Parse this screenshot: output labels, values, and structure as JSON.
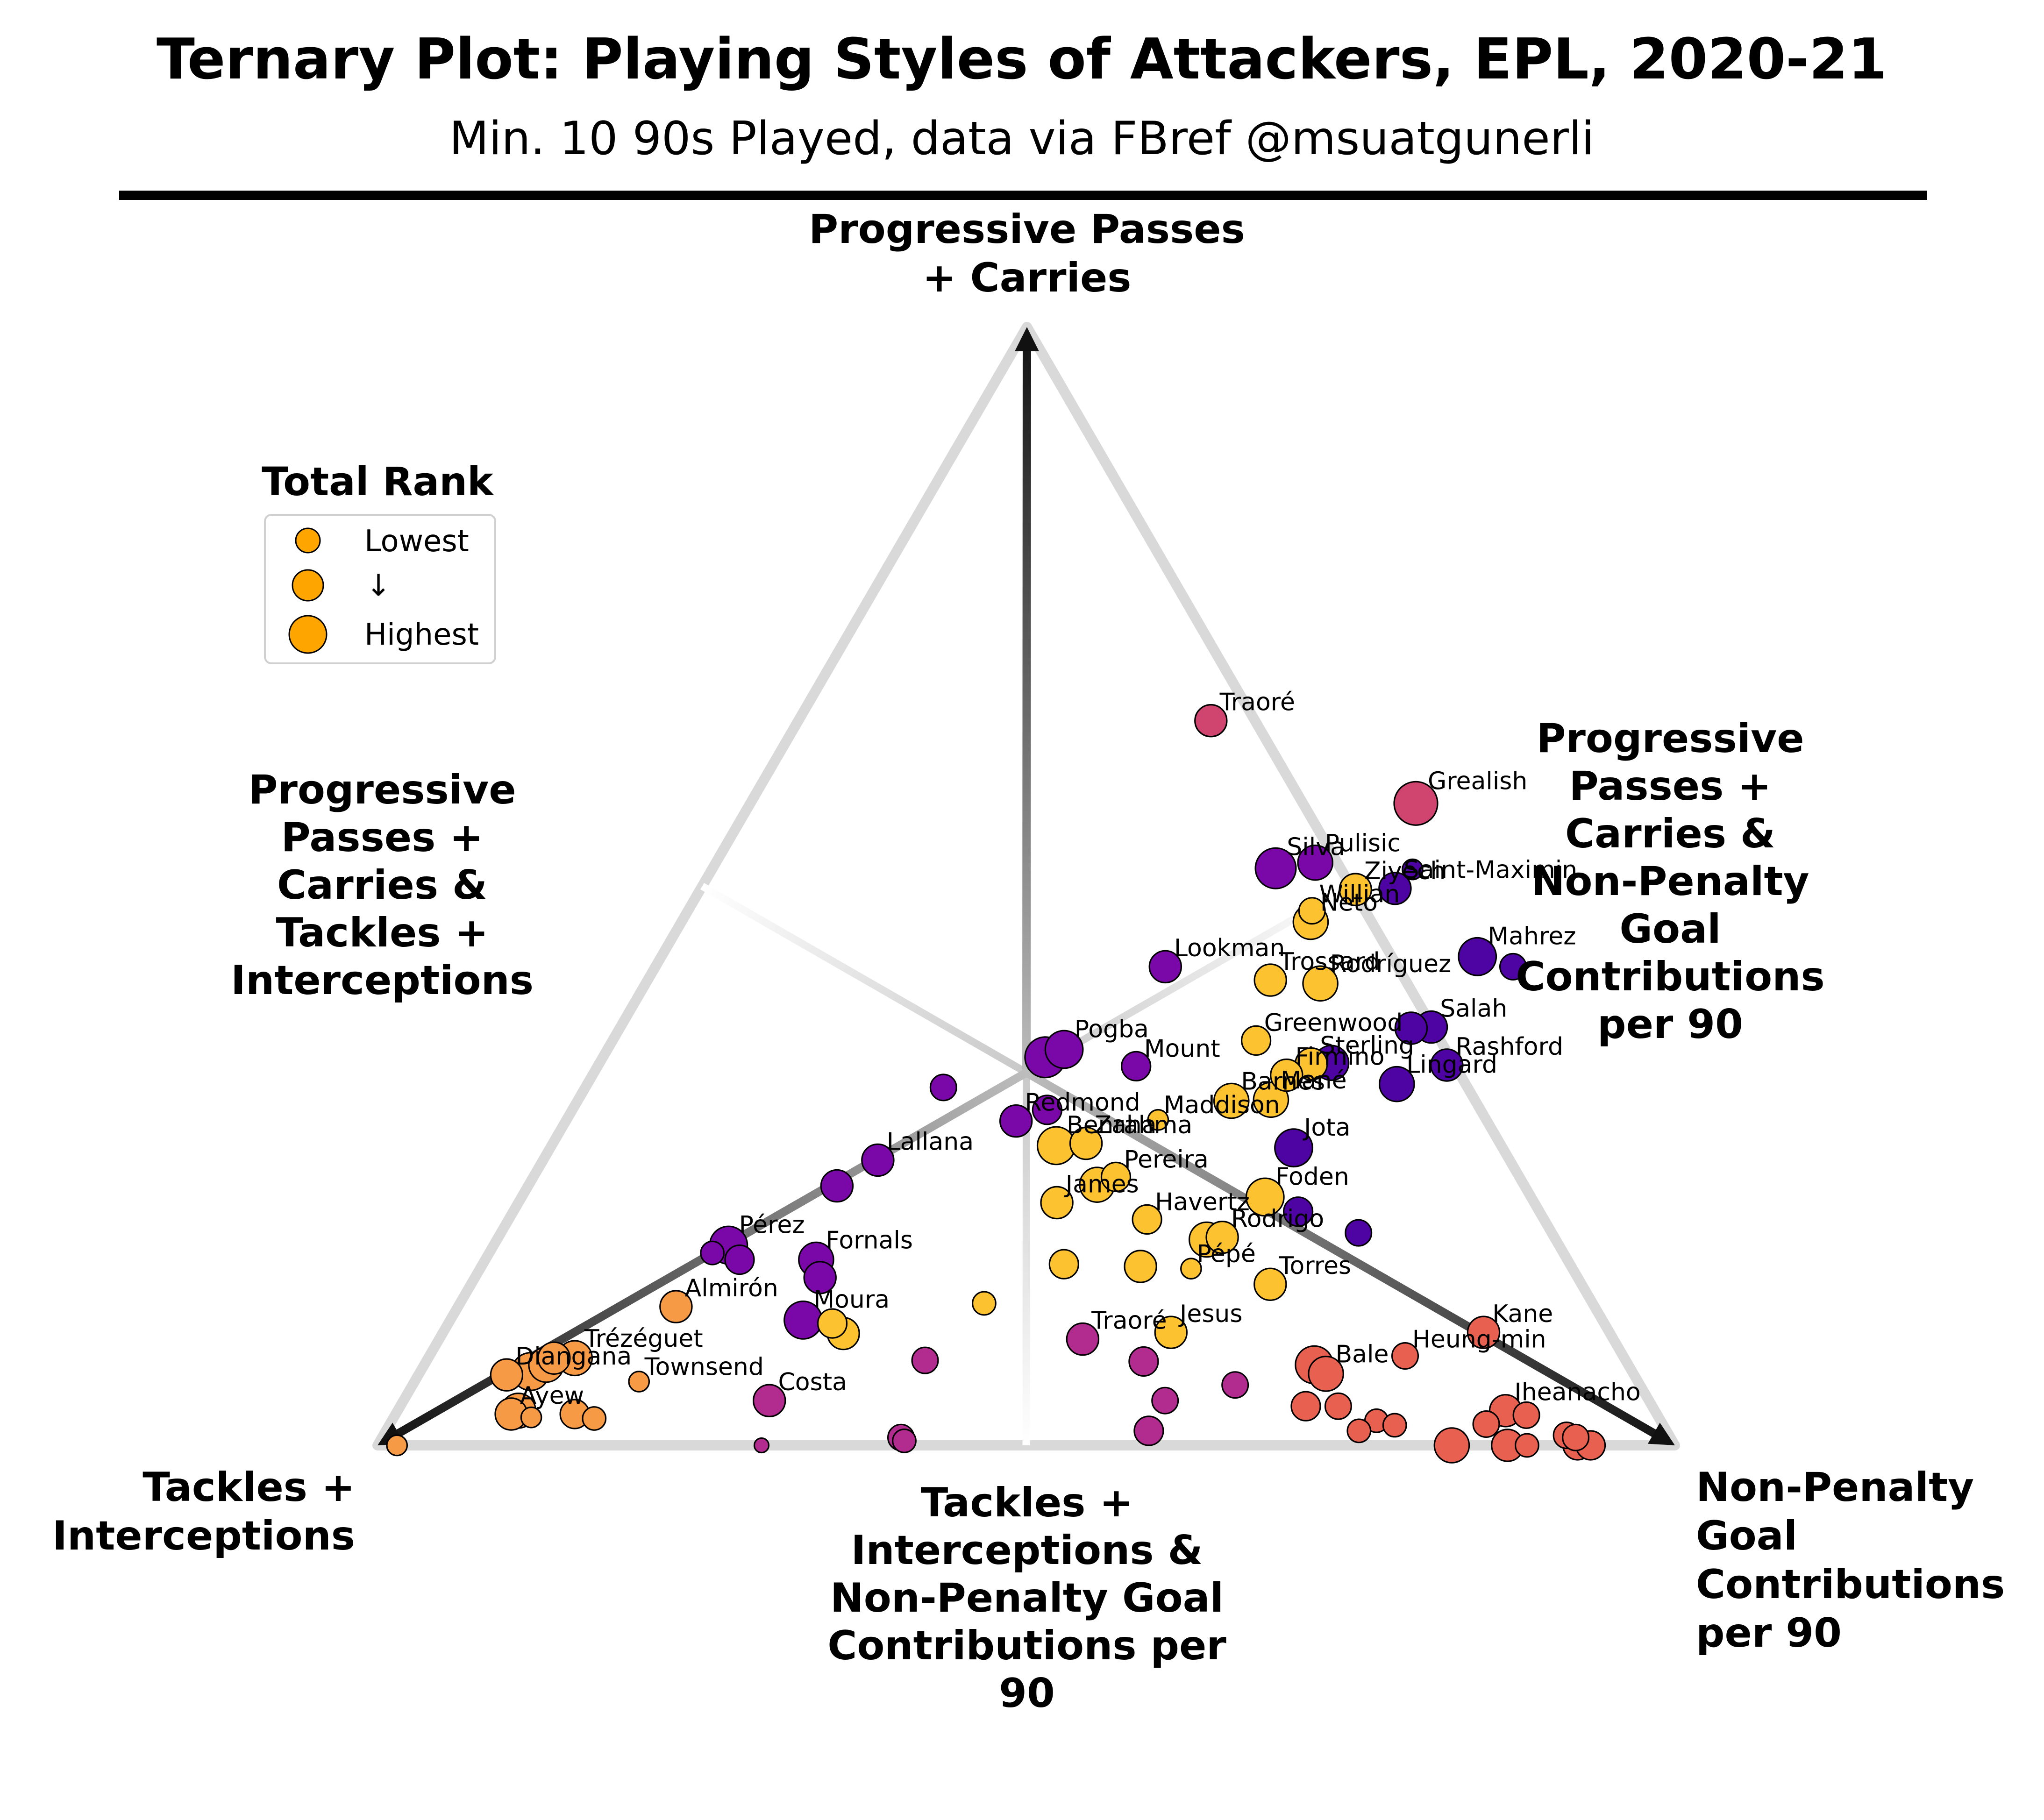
{
  "title": "Ternary Plot: Playing Styles of Attackers, EPL, 2020-21",
  "subtitle": "Min. 10 90s Played, data via FBref @msuatgunerli",
  "axes": {
    "top": [
      "Progressive Passes",
      "+ Carries"
    ],
    "left": [
      "Tackles +",
      "Interceptions"
    ],
    "right": [
      "Non-Penalty",
      "Goal",
      "Contributions",
      "per 90"
    ],
    "upper_left": [
      "Progressive",
      "Passes +",
      "Carries &",
      "Tackles +",
      "Interceptions"
    ],
    "upper_right": [
      "Progressive",
      "Passes +",
      "Carries &",
      "Non-Penalty",
      "Goal",
      "Contributions",
      "per 90"
    ],
    "bottom": [
      "Tackles +",
      "Interceptions &",
      "Non-Penalty Goal",
      "Contributions per",
      "90"
    ]
  },
  "legend": {
    "title": "Total Rank",
    "items": [
      "Lowest",
      "↓",
      "Highest"
    ],
    "color": "#ffa500"
  },
  "colors": {
    "yellow": "#fcc22f",
    "orange": "#f79a45",
    "purple": "#7a07a8",
    "indigo": "#4d04a3",
    "magenta": "#b22b8f",
    "pink": "#cf4570",
    "red": "#e8604f"
  },
  "chart_data": {
    "type": "scatter",
    "coordinates": "ternary (progressive passes + carries, tackles + interceptions, non-penalty goal contributions per 90)",
    "points": [
      {
        "name": "Traoré",
        "t": 0.648,
        "r": 0.318,
        "size": 22,
        "color": "pink"
      },
      {
        "name": "Grealish",
        "t": 0.574,
        "r": 0.513,
        "size": 30,
        "color": "pink"
      },
      {
        "name": "Silva",
        "t": 0.516,
        "r": 0.434,
        "size": 28,
        "color": "purple"
      },
      {
        "name": "Pulisic",
        "t": 0.521,
        "r": 0.462,
        "size": 24,
        "color": "purple"
      },
      {
        "name": "Ziyech",
        "t": 0.497,
        "r": 0.505,
        "size": 22,
        "color": "yellow"
      },
      {
        "name": "Saint-Maximin",
        "t": 0.498,
        "r": 0.535,
        "size": 22,
        "color": "indigo"
      },
      {
        "name": "",
        "t": 0.515,
        "r": 0.54,
        "size": 14,
        "color": "indigo"
      },
      {
        "name": "Neto",
        "t": 0.468,
        "r": 0.485,
        "size": 24,
        "color": "yellow"
      },
      {
        "name": "Willian",
        "t": 0.478,
        "r": 0.481,
        "size": 18,
        "color": "yellow"
      },
      {
        "name": "Lookman",
        "t": 0.428,
        "r": 0.393,
        "size": 22,
        "color": "purple"
      },
      {
        "name": "Mahrez",
        "t": 0.437,
        "r": 0.629,
        "size": 26,
        "color": "indigo"
      },
      {
        "name": "",
        "t": 0.428,
        "r": 0.661,
        "size": 18,
        "color": "indigo"
      },
      {
        "name": "Trossard",
        "t": 0.416,
        "r": 0.48,
        "size": 22,
        "color": "yellow"
      },
      {
        "name": "Rodríguez",
        "t": 0.413,
        "r": 0.52,
        "size": 24,
        "color": "yellow"
      },
      {
        "name": "Greenwood",
        "t": 0.362,
        "r": 0.496,
        "size": 20,
        "color": "yellow"
      },
      {
        "name": "Pogba",
        "t": 0.354,
        "r": 0.352,
        "size": 26,
        "color": "purple"
      },
      {
        "name": "",
        "t": 0.347,
        "r": 0.341,
        "size": 28,
        "color": "purple"
      },
      {
        "name": "Mount",
        "t": 0.339,
        "r": 0.415,
        "size": 20,
        "color": "purple"
      },
      {
        "name": "Sterling",
        "t": 0.341,
        "r": 0.549,
        "size": 22,
        "color": "yellow"
      },
      {
        "name": "",
        "t": 0.342,
        "r": 0.564,
        "size": 24,
        "color": "indigo"
      },
      {
        "name": "Salah",
        "t": 0.374,
        "r": 0.625,
        "size": 22,
        "color": "indigo"
      },
      {
        "name": "",
        "t": 0.373,
        "r": 0.61,
        "size": 22,
        "color": "indigo"
      },
      {
        "name": "Firmino",
        "t": 0.331,
        "r": 0.535,
        "size": 22,
        "color": "yellow"
      },
      {
        "name": "Rashford",
        "t": 0.34,
        "r": 0.654,
        "size": 22,
        "color": "indigo"
      },
      {
        "name": "Barnes",
        "t": 0.308,
        "r": 0.504,
        "size": 24,
        "color": "yellow"
      },
      {
        "name": "Mané",
        "t": 0.309,
        "r": 0.534,
        "size": 24,
        "color": "yellow"
      },
      {
        "name": "Lingard",
        "t": 0.323,
        "r": 0.624,
        "size": 24,
        "color": "indigo"
      },
      {
        "name": "",
        "t": 0.32,
        "r": 0.276,
        "size": 18,
        "color": "purple"
      },
      {
        "name": "Redmond",
        "t": 0.29,
        "r": 0.347,
        "size": 22,
        "color": "purple"
      },
      {
        "name": "",
        "t": 0.3,
        "r": 0.366,
        "size": 20,
        "color": "purple"
      },
      {
        "name": "Maddison",
        "t": 0.291,
        "r": 0.456,
        "size": 14,
        "color": "yellow"
      },
      {
        "name": "Zaha",
        "t": 0.27,
        "r": 0.411,
        "size": 22,
        "color": "yellow"
      },
      {
        "name": "Benrahma",
        "t": 0.268,
        "r": 0.389,
        "size": 26,
        "color": "yellow"
      },
      {
        "name": "Jota",
        "t": 0.266,
        "r": 0.573,
        "size": 26,
        "color": "indigo"
      },
      {
        "name": "Lallana",
        "t": 0.255,
        "r": 0.258,
        "size": 22,
        "color": "purple"
      },
      {
        "name": "",
        "t": 0.232,
        "r": 0.238,
        "size": 22,
        "color": "purple"
      },
      {
        "name": "Pereira",
        "t": 0.24,
        "r": 0.449,
        "size": 20,
        "color": "yellow"
      },
      {
        "name": "",
        "t": 0.233,
        "r": 0.438,
        "size": 24,
        "color": "yellow"
      },
      {
        "name": "James",
        "t": 0.217,
        "r": 0.415,
        "size": 22,
        "color": "yellow"
      },
      {
        "name": "Foden",
        "t": 0.222,
        "r": 0.573,
        "size": 26,
        "color": "yellow"
      },
      {
        "name": "Havertz",
        "t": 0.202,
        "r": 0.492,
        "size": 20,
        "color": "yellow"
      },
      {
        "name": "",
        "t": 0.209,
        "r": 0.605,
        "size": 20,
        "color": "indigo"
      },
      {
        "name": "Rodrigo",
        "t": 0.186,
        "r": 0.558,
        "size": 22,
        "color": "yellow"
      },
      {
        "name": "",
        "t": 0.184,
        "r": 0.547,
        "size": 24,
        "color": "yellow"
      },
      {
        "name": "",
        "t": 0.19,
        "r": 0.661,
        "size": 18,
        "color": "indigo"
      },
      {
        "name": "Pérez",
        "t": 0.179,
        "r": 0.181,
        "size": 26,
        "color": "purple"
      },
      {
        "name": "",
        "t": 0.172,
        "r": 0.172,
        "size": 16,
        "color": "purple"
      },
      {
        "name": "",
        "t": 0.166,
        "r": 0.196,
        "size": 20,
        "color": "purple"
      },
      {
        "name": "Fornals",
        "t": 0.166,
        "r": 0.255,
        "size": 24,
        "color": "purple"
      },
      {
        "name": "",
        "t": 0.15,
        "r": 0.266,
        "size": 22,
        "color": "purple"
      },
      {
        "name": "",
        "t": 0.162,
        "r": 0.448,
        "size": 20,
        "color": "yellow"
      },
      {
        "name": "",
        "t": 0.16,
        "r": 0.508,
        "size": 22,
        "color": "yellow"
      },
      {
        "name": "Pépé",
        "t": 0.158,
        "r": 0.548,
        "size": 14,
        "color": "yellow"
      },
      {
        "name": "Torres",
        "t": 0.144,
        "r": 0.616,
        "size": 22,
        "color": "yellow"
      },
      {
        "name": "Moura",
        "t": 0.112,
        "r": 0.272,
        "size": 26,
        "color": "purple"
      },
      {
        "name": "Almirón",
        "t": 0.124,
        "r": 0.168,
        "size": 22,
        "color": "orange"
      },
      {
        "name": "",
        "t": 0.127,
        "r": 0.404,
        "size": 16,
        "color": "yellow"
      },
      {
        "name": "",
        "t": 0.109,
        "r": 0.296,
        "size": 20,
        "color": "yellow"
      },
      {
        "name": "",
        "t": 0.1,
        "r": 0.309,
        "size": 22,
        "color": "yellow"
      },
      {
        "name": "Kane",
        "t": 0.101,
        "r": 0.802,
        "size": 22,
        "color": "red"
      },
      {
        "name": "Jesus",
        "t": 0.101,
        "r": 0.561,
        "size": 22,
        "color": "yellow"
      },
      {
        "name": "Traoré",
        "t": 0.095,
        "r": 0.496,
        "size": 22,
        "color": "magenta"
      },
      {
        "name": "Trézéguet",
        "t": 0.078,
        "r": 0.113,
        "size": 24,
        "color": "orange"
      },
      {
        "name": "",
        "t": 0.078,
        "r": 0.097,
        "size": 22,
        "color": "orange"
      },
      {
        "name": "Heung-min",
        "t": 0.08,
        "r": 0.752,
        "size": 18,
        "color": "red"
      },
      {
        "name": "",
        "t": 0.076,
        "r": 0.384,
        "size": 18,
        "color": "magenta"
      },
      {
        "name": "",
        "t": 0.075,
        "r": 0.553,
        "size": 20,
        "color": "magenta"
      },
      {
        "name": "Diangana",
        "t": 0.063,
        "r": 0.068,
        "size": 22,
        "color": "orange"
      },
      {
        "name": "",
        "t": 0.066,
        "r": 0.085,
        "size": 26,
        "color": "orange"
      },
      {
        "name": "",
        "t": 0.072,
        "r": 0.094,
        "size": 24,
        "color": "orange"
      },
      {
        "name": "",
        "t": 0.072,
        "r": 0.686,
        "size": 26,
        "color": "red"
      },
      {
        "name": "Bale",
        "t": 0.064,
        "r": 0.699,
        "size": 24,
        "color": "red"
      },
      {
        "name": "",
        "t": 0.054,
        "r": 0.634,
        "size": 18,
        "color": "magenta"
      },
      {
        "name": "Townsend",
        "t": 0.057,
        "r": 0.173,
        "size": 14,
        "color": "orange"
      },
      {
        "name": "Costa",
        "t": 0.04,
        "r": 0.282,
        "size": 22,
        "color": "magenta"
      },
      {
        "name": "",
        "t": 0.04,
        "r": 0.587,
        "size": 18,
        "color": "magenta"
      },
      {
        "name": "Iheanacho",
        "t": 0.031,
        "r": 0.854,
        "size": 22,
        "color": "red"
      },
      {
        "name": "",
        "t": 0.035,
        "r": 0.698,
        "size": 20,
        "color": "red"
      },
      {
        "name": "",
        "t": 0.035,
        "r": 0.723,
        "size": 18,
        "color": "red"
      },
      {
        "name": "Ayew",
        "t": 0.028,
        "r": 0.089,
        "size": 22,
        "color": "orange"
      },
      {
        "name": "",
        "t": 0.031,
        "r": 0.093,
        "size": 24,
        "color": "orange"
      },
      {
        "name": "",
        "t": 0.028,
        "r": 0.138,
        "size": 20,
        "color": "orange"
      },
      {
        "name": "",
        "t": 0.024,
        "r": 0.155,
        "size": 16,
        "color": "orange"
      },
      {
        "name": "",
        "t": 0.025,
        "r": 0.106,
        "size": 14,
        "color": "orange"
      },
      {
        "name": "",
        "t": 0.027,
        "r": 0.872,
        "size": 18,
        "color": "red"
      },
      {
        "name": "",
        "t": 0.022,
        "r": 0.759,
        "size": 16,
        "color": "red"
      },
      {
        "name": "",
        "t": 0.019,
        "r": 0.845,
        "size": 18,
        "color": "red"
      },
      {
        "name": "",
        "t": 0.018,
        "r": 0.775,
        "size": 16,
        "color": "red"
      },
      {
        "name": "",
        "t": 0.013,
        "r": 0.588,
        "size": 20,
        "color": "magenta"
      },
      {
        "name": "",
        "t": 0.013,
        "r": 0.75,
        "size": 16,
        "color": "red"
      },
      {
        "name": "",
        "t": 0.009,
        "r": 0.912,
        "size": 18,
        "color": "red"
      },
      {
        "name": "",
        "t": 0.0,
        "r": 0.015,
        "size": 14,
        "color": "orange"
      },
      {
        "name": "",
        "t": 0.007,
        "r": 0.4,
        "size": 18,
        "color": "magenta"
      },
      {
        "name": "",
        "t": 0.007,
        "r": 0.92,
        "size": 18,
        "color": "red"
      },
      {
        "name": "",
        "t": 0.004,
        "r": 0.404,
        "size": 16,
        "color": "magenta"
      },
      {
        "name": "",
        "t": 0.0,
        "r": 0.296,
        "size": 10,
        "color": "magenta"
      },
      {
        "name": "",
        "t": 0.0,
        "r": 0.828,
        "size": 24,
        "color": "red"
      },
      {
        "name": "",
        "t": 0.0,
        "r": 0.871,
        "size": 22,
        "color": "red"
      },
      {
        "name": "",
        "t": 0.0,
        "r": 0.886,
        "size": 16,
        "color": "red"
      },
      {
        "name": "",
        "t": 0.0,
        "r": 0.925,
        "size": 20,
        "color": "red"
      },
      {
        "name": "",
        "t": 0.0,
        "r": 0.935,
        "size": 20,
        "color": "red"
      }
    ]
  }
}
